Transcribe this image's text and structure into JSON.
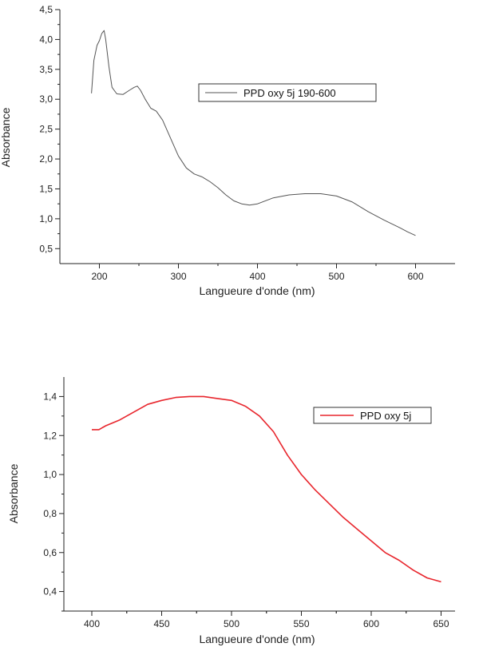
{
  "chart_data": [
    {
      "type": "line",
      "xlabel": "Langueure d'onde (nm)",
      "ylabel": "Absorbance",
      "xlim": [
        150,
        650
      ],
      "ylim": [
        0.25,
        4.5
      ],
      "x_ticks": [
        200,
        300,
        400,
        500,
        600
      ],
      "x_tick_labels": [
        "200",
        "300",
        "400",
        "500",
        "600"
      ],
      "y_ticks": [
        0.5,
        1.0,
        1.5,
        2.0,
        2.5,
        3.0,
        3.5,
        4.0,
        4.5
      ],
      "y_tick_labels": [
        "0,5",
        "1,0",
        "1,5",
        "2,0",
        "2,5",
        "3,0",
        "3,5",
        "4,0",
        "4,5"
      ],
      "grid": false,
      "legend_position": "top-right",
      "series": [
        {
          "name": "PPD oxy 5j 190-600",
          "color": "#555555",
          "x": [
            190,
            193,
            197,
            200,
            203,
            206,
            208,
            212,
            216,
            222,
            230,
            238,
            244,
            248,
            252,
            258,
            265,
            272,
            280,
            290,
            300,
            310,
            320,
            330,
            340,
            350,
            360,
            370,
            380,
            390,
            400,
            420,
            440,
            460,
            470,
            480,
            500,
            520,
            540,
            560,
            580,
            590,
            600
          ],
          "y": [
            3.1,
            3.65,
            3.9,
            3.98,
            4.1,
            4.15,
            4.0,
            3.55,
            3.2,
            3.09,
            3.08,
            3.15,
            3.2,
            3.22,
            3.15,
            3.0,
            2.85,
            2.8,
            2.65,
            2.35,
            2.05,
            1.85,
            1.75,
            1.7,
            1.62,
            1.52,
            1.4,
            1.3,
            1.25,
            1.23,
            1.25,
            1.35,
            1.4,
            1.42,
            1.42,
            1.42,
            1.38,
            1.28,
            1.12,
            0.98,
            0.85,
            0.78,
            0.72
          ]
        }
      ]
    },
    {
      "type": "line",
      "xlabel": "Langueure d'onde (nm)",
      "ylabel": "Absorbance",
      "xlim": [
        380,
        660
      ],
      "ylim": [
        0.3,
        1.5
      ],
      "x_ticks": [
        400,
        450,
        500,
        550,
        600,
        650
      ],
      "x_tick_labels": [
        "400",
        "450",
        "500",
        "550",
        "600",
        "650"
      ],
      "y_ticks": [
        0.4,
        0.6,
        0.8,
        1.0,
        1.2,
        1.4
      ],
      "y_tick_labels": [
        "0,4",
        "0,6",
        "0,8",
        "1,0",
        "1,2",
        "1,4"
      ],
      "grid": false,
      "legend_position": "top-right",
      "series": [
        {
          "name": "PPD oxy 5j",
          "color": "#e8262d",
          "x": [
            400,
            405,
            410,
            420,
            430,
            440,
            450,
            460,
            470,
            480,
            490,
            500,
            510,
            520,
            530,
            540,
            550,
            560,
            570,
            580,
            590,
            600,
            610,
            620,
            630,
            640,
            650
          ],
          "y": [
            1.23,
            1.23,
            1.25,
            1.28,
            1.32,
            1.36,
            1.38,
            1.395,
            1.4,
            1.4,
            1.39,
            1.38,
            1.35,
            1.3,
            1.22,
            1.1,
            1.0,
            0.92,
            0.85,
            0.78,
            0.72,
            0.66,
            0.6,
            0.56,
            0.51,
            0.47,
            0.45
          ]
        }
      ]
    }
  ]
}
